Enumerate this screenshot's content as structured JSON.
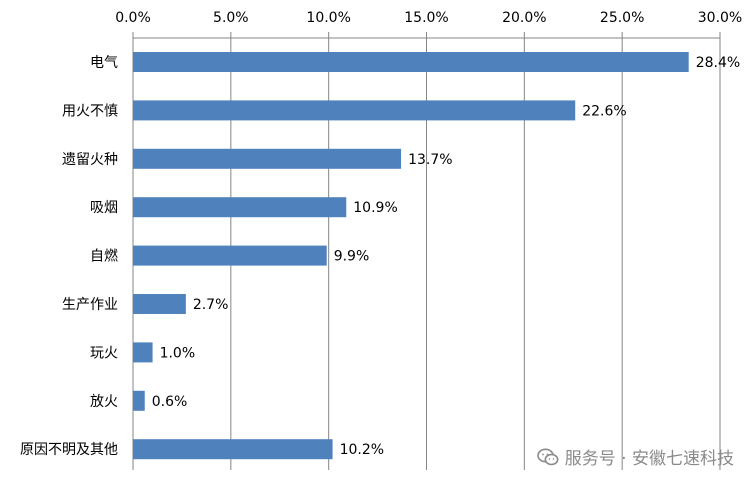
{
  "chart_data": {
    "type": "bar",
    "orientation": "horizontal",
    "categories": [
      "电气",
      "用火不慎",
      "遗留火种",
      "吸烟",
      "自燃",
      "生产作业",
      "玩火",
      "放火",
      "原因不明及其他"
    ],
    "values": [
      28.4,
      22.6,
      13.7,
      10.9,
      9.9,
      2.7,
      1.0,
      0.6,
      10.2
    ],
    "data_labels": [
      "28.4%",
      "22.6%",
      "13.7%",
      "10.9%",
      "9.9%",
      "2.7%",
      "1.0%",
      "0.6%",
      "10.2%"
    ],
    "xlim": [
      0,
      30
    ],
    "x_ticks": [
      0,
      5,
      10,
      15,
      20,
      25,
      30
    ],
    "x_tick_labels": [
      "0.0%",
      "5.0%",
      "10.0%",
      "15.0%",
      "20.0%",
      "25.0%",
      "30.0%"
    ],
    "x_axis_position": "top",
    "grid": true,
    "bar_color": "#4f81bd",
    "grid_color": "#868686",
    "title": "",
    "xlabel": "",
    "ylabel": ""
  },
  "watermark": {
    "text": "服务号 · 安徽七速科技",
    "icon": "wechat-icon",
    "color": "#8a8a8a"
  }
}
